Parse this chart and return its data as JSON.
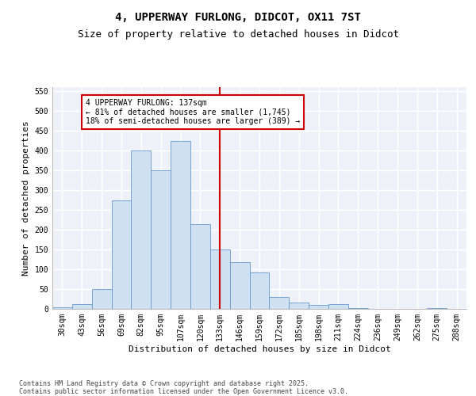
{
  "title": "4, UPPERWAY FURLONG, DIDCOT, OX11 7ST",
  "subtitle": "Size of property relative to detached houses in Didcot",
  "xlabel": "Distribution of detached houses by size in Didcot",
  "ylabel": "Number of detached properties",
  "categories": [
    "30sqm",
    "43sqm",
    "56sqm",
    "69sqm",
    "82sqm",
    "95sqm",
    "107sqm",
    "120sqm",
    "133sqm",
    "146sqm",
    "159sqm",
    "172sqm",
    "185sqm",
    "198sqm",
    "211sqm",
    "224sqm",
    "236sqm",
    "249sqm",
    "262sqm",
    "275sqm",
    "288sqm"
  ],
  "values": [
    5,
    12,
    50,
    275,
    400,
    350,
    425,
    215,
    150,
    118,
    92,
    30,
    17,
    10,
    12,
    3,
    0,
    0,
    0,
    2,
    0
  ],
  "bar_color": "#cfe0f0",
  "bar_edge_color": "#6699cc",
  "vline_x_index": 8,
  "vline_color": "#cc0000",
  "annotation_text": "4 UPPERWAY FURLONG: 137sqm\n← 81% of detached houses are smaller (1,745)\n18% of semi-detached houses are larger (389) →",
  "annotation_box_color": "#cc0000",
  "background_color": "#eef2f8",
  "grid_color": "#ffffff",
  "fig_background": "#ffffff",
  "ylim": [
    0,
    560
  ],
  "yticks": [
    0,
    50,
    100,
    150,
    200,
    250,
    300,
    350,
    400,
    450,
    500,
    550
  ],
  "footer": "Contains HM Land Registry data © Crown copyright and database right 2025.\nContains public sector information licensed under the Open Government Licence v3.0.",
  "title_fontsize": 10,
  "subtitle_fontsize": 9,
  "tick_fontsize": 7,
  "ylabel_fontsize": 8,
  "xlabel_fontsize": 8,
  "footer_fontsize": 6,
  "annotation_fontsize": 7
}
